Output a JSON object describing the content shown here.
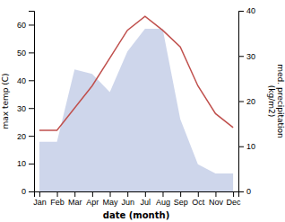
{
  "chart_data": {
    "type": "line",
    "categories": [
      "Jan",
      "Feb",
      "Mar",
      "Apr",
      "May",
      "Jun",
      "Jul",
      "Aug",
      "Sep",
      "Oct",
      "Nov",
      "Dec"
    ],
    "xlabel": "date (month)",
    "ylabel": "max temp (C)",
    "y2label": "med. precipitation\n(kg/m2)",
    "series": [
      {
        "type": "area",
        "axis": "y2",
        "color": "#c5cfe8",
        "values": [
          11,
          11,
          27,
          26,
          22,
          31,
          36,
          36,
          16,
          6,
          4,
          4
        ]
      },
      {
        "type": "line",
        "color": "#c0504d",
        "values": [
          22,
          22,
          30,
          38,
          48,
          58,
          63,
          58,
          52,
          38,
          28,
          23
        ]
      }
    ],
    "ylim": [
      0,
      65
    ],
    "yticks": [
      0,
      10,
      20,
      30,
      40,
      50,
      60
    ],
    "y2lim": [
      0,
      40
    ],
    "y2ticks": [
      0,
      10,
      20,
      30,
      40
    ]
  }
}
